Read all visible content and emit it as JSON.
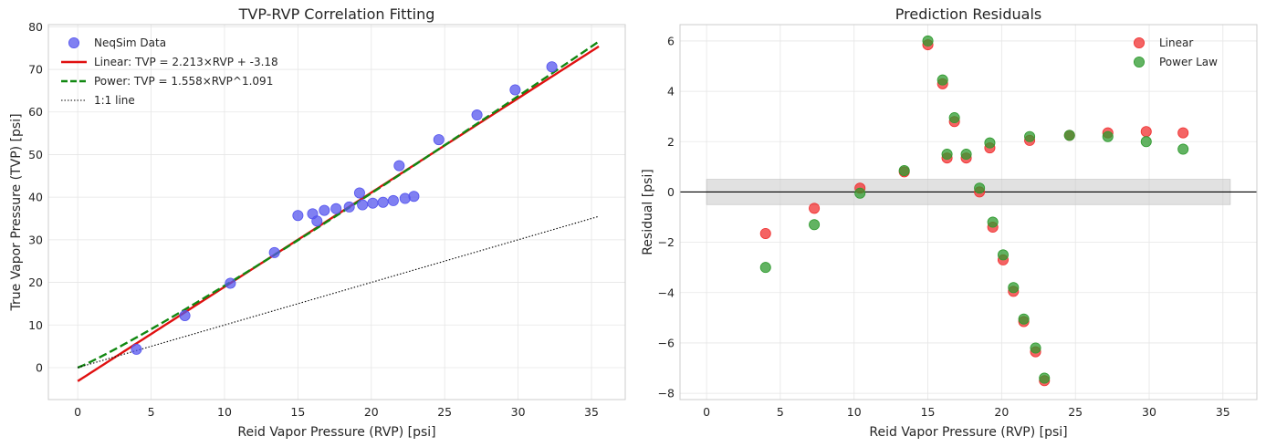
{
  "chart_data": [
    {
      "type": "scatter",
      "title": "TVP-RVP Correlation Fitting",
      "xlabel": "Reid Vapor Pressure (RVP) [psi]",
      "ylabel": "True Vapor Pressure (TVP) [psi]",
      "xlim": [
        -2.0,
        37.3
      ],
      "ylim": [
        -7.5,
        80.5
      ],
      "xticks": [
        0,
        5,
        10,
        15,
        20,
        25,
        30,
        35
      ],
      "yticks": [
        0,
        10,
        20,
        30,
        40,
        50,
        60,
        70,
        80
      ],
      "grid": true,
      "legend_position": "top-left",
      "series": [
        {
          "name": "NeqSim Data",
          "kind": "scatter",
          "color": "#5555ee",
          "x": [
            4.0,
            7.3,
            10.4,
            13.4,
            15.0,
            16.0,
            16.3,
            16.8,
            17.6,
            18.5,
            19.2,
            19.4,
            20.1,
            20.8,
            21.5,
            21.9,
            22.3,
            22.9,
            24.6,
            27.2,
            29.8,
            32.3
          ],
          "y": [
            4.3,
            12.2,
            19.8,
            27.0,
            35.7,
            36.1,
            34.4,
            36.9,
            37.3,
            37.7,
            41.0,
            38.2,
            38.6,
            38.8,
            39.2,
            47.4,
            39.7,
            40.2,
            53.5,
            59.3,
            65.2,
            70.6
          ]
        },
        {
          "name": "Linear: TVP = 2.213×RVP + -3.18",
          "kind": "line",
          "color": "#e01010",
          "dash": "solid",
          "fn": "linear",
          "params": [
            2.213,
            -3.18
          ]
        },
        {
          "name": "Power: TVP = 1.558×RVP^1.091",
          "kind": "line",
          "color": "#118811",
          "dash": "dashed",
          "fn": "power",
          "params": [
            1.558,
            1.091
          ]
        },
        {
          "name": "1:1 line",
          "kind": "line",
          "color": "#000000",
          "dash": "dotted",
          "fn": "identity",
          "params": []
        }
      ],
      "line_x_range": [
        0,
        35.5
      ]
    },
    {
      "type": "scatter",
      "title": "Prediction Residuals",
      "xlabel": "Reid Vapor Pressure (RVP) [psi]",
      "ylabel": "Residual [psi]",
      "xlim": [
        -1.8,
        37.3
      ],
      "ylim": [
        -8.25,
        6.65
      ],
      "xticks": [
        0,
        5,
        10,
        15,
        20,
        25,
        30,
        35
      ],
      "yticks": [
        -8,
        -6,
        -4,
        -2,
        0,
        2,
        4,
        6
      ],
      "grid": true,
      "legend_position": "top-right",
      "band": {
        "x": [
          0,
          35.5
        ],
        "y": [
          -0.5,
          0.5
        ],
        "color": "#c8c8c8"
      },
      "zero_line": 0,
      "series": [
        {
          "name": "Linear",
          "kind": "scatter",
          "color": "#f03030",
          "x": [
            4.0,
            7.3,
            10.4,
            13.4,
            15.0,
            16.0,
            16.3,
            16.8,
            17.6,
            18.5,
            19.2,
            19.4,
            20.1,
            20.8,
            21.5,
            21.9,
            22.3,
            22.9,
            24.6,
            27.2,
            29.8,
            32.3
          ],
          "y": [
            -1.65,
            -0.65,
            0.15,
            0.8,
            5.85,
            4.3,
            1.35,
            2.8,
            1.35,
            0.0,
            1.75,
            -1.4,
            -2.7,
            -3.95,
            -5.15,
            2.05,
            -6.35,
            -7.5,
            2.25,
            2.35,
            2.4,
            2.35
          ]
        },
        {
          "name": "Power Law",
          "kind": "scatter",
          "color": "#2e9a2e",
          "x": [
            4.0,
            7.3,
            10.4,
            13.4,
            15.0,
            16.0,
            16.3,
            16.8,
            17.6,
            18.5,
            19.2,
            19.4,
            20.1,
            20.8,
            21.5,
            21.9,
            22.3,
            22.9,
            24.6,
            27.2,
            29.8,
            32.3
          ],
          "y": [
            -3.0,
            -1.3,
            -0.05,
            0.85,
            6.0,
            4.45,
            1.5,
            2.95,
            1.5,
            0.15,
            1.95,
            -1.2,
            -2.5,
            -3.8,
            -5.05,
            2.2,
            -6.2,
            -7.4,
            2.25,
            2.2,
            2.0,
            1.7
          ]
        }
      ]
    }
  ]
}
